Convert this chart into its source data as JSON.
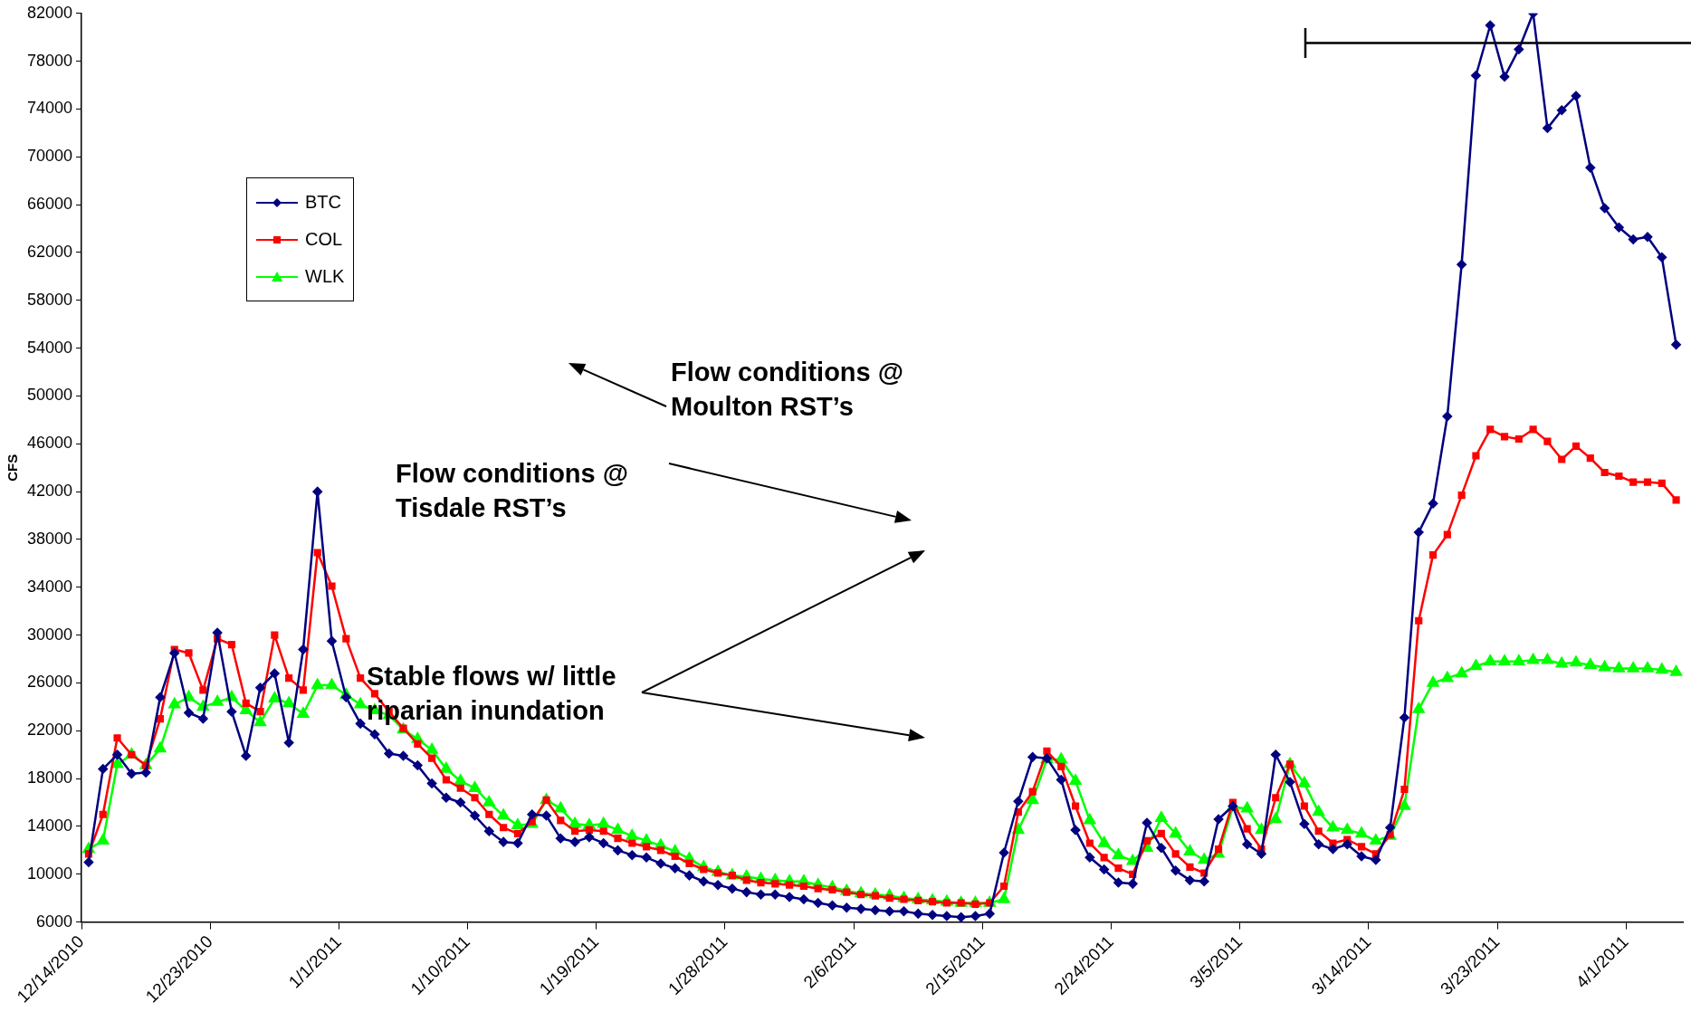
{
  "chart_data": {
    "type": "line",
    "ylabel": "CFS",
    "legend": "top left",
    "grid": false,
    "xlim": [
      "2010-12-14",
      "2011-04-05"
    ],
    "xticks": [
      {
        "value": "2010-12-14",
        "label": "12/14/2010"
      },
      {
        "value": "2010-12-23",
        "label": "12/23/2010"
      },
      {
        "value": "2011-01-01",
        "label": "1/1/2011"
      },
      {
        "value": "2011-01-10",
        "label": "1/10/2011"
      },
      {
        "value": "2011-01-19",
        "label": "1/19/2011"
      },
      {
        "value": "2011-01-28",
        "label": "1/28/2011"
      },
      {
        "value": "2011-02-06",
        "label": "2/6/2011"
      },
      {
        "value": "2011-02-15",
        "label": "2/15/2011"
      },
      {
        "value": "2011-02-24",
        "label": "2/24/2011"
      },
      {
        "value": "2011-03-05",
        "label": "3/5/2011"
      },
      {
        "value": "2011-03-14",
        "label": "3/14/2011"
      },
      {
        "value": "2011-03-23",
        "label": "3/23/2011"
      },
      {
        "value": "2011-04-01",
        "label": "4/1/2011"
      }
    ],
    "ylim": [
      6000,
      82000
    ],
    "yticks": [
      6000,
      10000,
      14000,
      18000,
      22000,
      26000,
      30000,
      34000,
      38000,
      42000,
      46000,
      50000,
      54000,
      58000,
      62000,
      66000,
      70000,
      74000,
      78000,
      82000
    ],
    "annotations": [
      "Flow conditions @ Moulton RST’s",
      "Flow conditions @ Tisdale RST’s",
      "Stable flows w/ little riparian inundation"
    ],
    "x": [
      "2010-12-14T12:00",
      "2010-12-15T12:00",
      "2010-12-16T12:00",
      "2010-12-17T12:00",
      "2010-12-18T12:00",
      "2010-12-19T12:00",
      "2010-12-20T12:00",
      "2010-12-21T12:00",
      "2010-12-22T12:00",
      "2010-12-23T12:00",
      "2010-12-24T12:00",
      "2010-12-25T12:00",
      "2010-12-26T12:00",
      "2010-12-27T12:00",
      "2010-12-28T12:00",
      "2010-12-29T12:00",
      "2010-12-30T12:00",
      "2010-12-31T12:00",
      "2011-01-01T12:00",
      "2011-01-02T12:00",
      "2011-01-03T12:00",
      "2011-01-04T12:00",
      "2011-01-05T12:00",
      "2011-01-06T12:00",
      "2011-01-07T12:00",
      "2011-01-08T12:00",
      "2011-01-09T12:00",
      "2011-01-10T12:00",
      "2011-01-11T12:00",
      "2011-01-12T12:00",
      "2011-01-13T12:00",
      "2011-01-14T12:00",
      "2011-01-15T12:00",
      "2011-01-16T12:00",
      "2011-01-17T12:00",
      "2011-01-18T12:00",
      "2011-01-19T12:00",
      "2011-01-20T12:00",
      "2011-01-21T12:00",
      "2011-01-22T12:00",
      "2011-01-23T12:00",
      "2011-01-24T12:00",
      "2011-01-25T12:00",
      "2011-01-26T12:00",
      "2011-01-27T12:00",
      "2011-01-28T12:00",
      "2011-01-29T12:00",
      "2011-01-30T12:00",
      "2011-01-31T12:00",
      "2011-02-01T12:00",
      "2011-02-02T12:00",
      "2011-02-03T12:00",
      "2011-02-04T12:00",
      "2011-02-05T12:00",
      "2011-02-06T12:00",
      "2011-02-07T12:00",
      "2011-02-08T12:00",
      "2011-02-09T12:00",
      "2011-02-10T12:00",
      "2011-02-11T12:00",
      "2011-02-12T12:00",
      "2011-02-13T12:00",
      "2011-02-14T12:00",
      "2011-02-15T12:00",
      "2011-02-16T12:00",
      "2011-02-17T12:00",
      "2011-02-18T12:00",
      "2011-02-19T12:00",
      "2011-02-20T12:00",
      "2011-02-21T12:00",
      "2011-02-22T12:00",
      "2011-02-23T12:00",
      "2011-02-24T12:00",
      "2011-02-25T12:00",
      "2011-02-26T12:00",
      "2011-02-27T12:00",
      "2011-02-28T12:00",
      "2011-03-01T12:00",
      "2011-03-02T12:00",
      "2011-03-03T12:00",
      "2011-03-04T12:00",
      "2011-03-05T12:00",
      "2011-03-06T12:00",
      "2011-03-07T12:00",
      "2011-03-08T12:00",
      "2011-03-09T12:00",
      "2011-03-10T12:00",
      "2011-03-11T12:00",
      "2011-03-12T12:00",
      "2011-03-13T12:00",
      "2011-03-14T12:00",
      "2011-03-15T12:00",
      "2011-03-16T12:00",
      "2011-03-17T12:00",
      "2011-03-18T12:00",
      "2011-03-19T12:00",
      "2011-03-20T12:00",
      "2011-03-21T12:00",
      "2011-03-22T12:00",
      "2011-03-23T12:00",
      "2011-03-24T12:00",
      "2011-03-25T12:00",
      "2011-03-26T12:00",
      "2011-03-27T12:00",
      "2011-03-28T12:00",
      "2011-03-29T12:00",
      "2011-03-30T12:00",
      "2011-03-31T12:00",
      "2011-04-01T12:00",
      "2011-04-02T12:00",
      "2011-04-03T12:00",
      "2011-04-04T12:00"
    ],
    "series": [
      {
        "name": "BTC",
        "color": "#000080",
        "marker": "diamond",
        "values": [
          11000,
          18800,
          20000,
          18400,
          18500,
          24800,
          28500,
          23500,
          23000,
          30200,
          23600,
          19900,
          25600,
          26800,
          21000,
          28800,
          42000,
          29500,
          24800,
          22600,
          21700,
          20100,
          19900,
          19100,
          17600,
          16400,
          16000,
          14900,
          13600,
          12700,
          12600,
          15000,
          14900,
          13000,
          12700,
          13100,
          12600,
          12000,
          11600,
          11400,
          10900,
          10500,
          9900,
          9400,
          9100,
          8800,
          8500,
          8300,
          8300,
          8100,
          7900,
          7600,
          7400,
          7200,
          7100,
          7000,
          6900,
          6900,
          6700,
          6600,
          6500,
          6400,
          6500,
          6700,
          11800,
          16100,
          19800,
          19700,
          17900,
          13700,
          11400,
          10400,
          9300,
          9200,
          14300,
          12200,
          10300,
          9500,
          9400,
          14600,
          15700,
          12500,
          11700,
          20000,
          17700,
          14200,
          12500,
          12100,
          12500,
          11500,
          11200,
          13900,
          23100,
          38600,
          41000,
          48300,
          61000,
          76800,
          81000,
          76700,
          79000,
          82000,
          72400,
          73900,
          75100,
          69100,
          65700,
          64100,
          63100,
          63300,
          61600,
          54300
        ]
      },
      {
        "name": "COL",
        "color": "#ff0000",
        "marker": "square",
        "values": [
          11700,
          15000,
          21400,
          20000,
          19100,
          23000,
          28800,
          28500,
          25400,
          29700,
          29200,
          24300,
          23600,
          30000,
          26400,
          25400,
          36900,
          34100,
          29700,
          26400,
          25100,
          23600,
          22200,
          20900,
          19700,
          17900,
          17200,
          16400,
          15000,
          13900,
          13400,
          14400,
          16200,
          14500,
          13600,
          13700,
          13600,
          13000,
          12600,
          12300,
          12000,
          11500,
          10900,
          10400,
          10100,
          9900,
          9500,
          9300,
          9200,
          9100,
          9000,
          8800,
          8700,
          8500,
          8300,
          8200,
          8000,
          7900,
          7800,
          7700,
          7600,
          7600,
          7500,
          7600,
          9000,
          15200,
          16900,
          20300,
          19000,
          15700,
          12600,
          11400,
          10500,
          10000,
          12800,
          13400,
          11700,
          10600,
          10100,
          12100,
          16000,
          13800,
          12100,
          16400,
          19200,
          15700,
          13600,
          12600,
          12900,
          12300,
          11700,
          13300,
          17100,
          31200,
          36700,
          38400,
          41700,
          45000,
          47200,
          46600,
          46400,
          47200,
          46200,
          44700,
          45800,
          44800,
          43600,
          43300,
          42800,
          42800,
          42700,
          41300
        ]
      },
      {
        "name": "WLK",
        "color": "#00ff00",
        "marker": "triangle",
        "values": [
          12100,
          12800,
          19200,
          20000,
          19100,
          20500,
          24200,
          24800,
          24000,
          24400,
          24800,
          23700,
          22700,
          24700,
          24300,
          23400,
          25800,
          25800,
          25000,
          24200,
          23700,
          23300,
          22100,
          21300,
          20400,
          18800,
          17800,
          17200,
          16000,
          14900,
          14100,
          14200,
          16200,
          15500,
          14200,
          14100,
          14200,
          13700,
          13200,
          12800,
          12400,
          11900,
          11300,
          10600,
          10200,
          9900,
          9800,
          9600,
          9500,
          9400,
          9400,
          9100,
          8900,
          8600,
          8400,
          8300,
          8200,
          8000,
          7900,
          7800,
          7700,
          7600,
          7600,
          7600,
          7900,
          13700,
          16200,
          19600,
          19600,
          17800,
          14500,
          12600,
          11600,
          11100,
          12200,
          14700,
          13400,
          11900,
          11200,
          11700,
          15600,
          15500,
          13700,
          14600,
          19200,
          17600,
          15200,
          13900,
          13700,
          13400,
          12800,
          13200,
          15700,
          23800,
          26000,
          26400,
          26800,
          27400,
          27800,
          27800,
          27800,
          27900,
          27900,
          27600,
          27700,
          27500,
          27300,
          27200,
          27200,
          27200,
          27100,
          26900
        ]
      }
    ]
  }
}
